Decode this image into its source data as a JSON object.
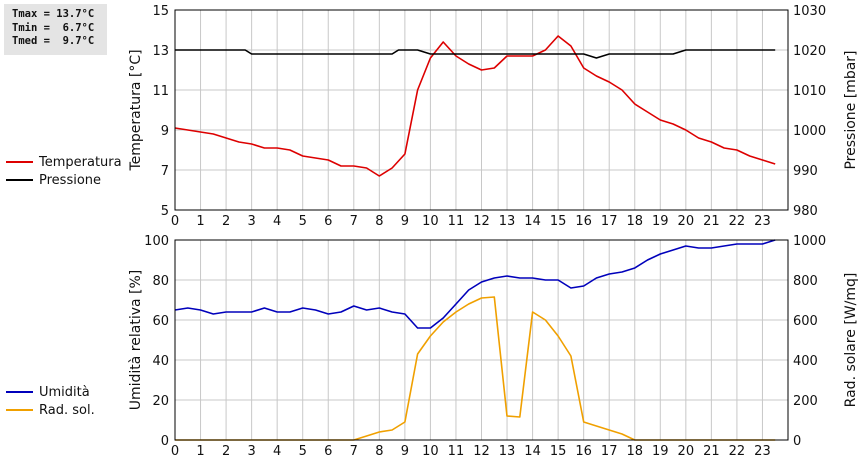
{
  "stats": {
    "tmax": "Tmax = 13.7°C",
    "tmin": "Tmin =  6.7°C",
    "tmed": "Tmed =  9.7°C"
  },
  "colors": {
    "temperature": "#dd0000",
    "pressure": "#000000",
    "humidity": "#0000bb",
    "radiation": "#f0a000",
    "grid": "#c8c8c8"
  },
  "chart_data": [
    {
      "type": "line",
      "x_ticks": [
        "0",
        "1",
        "2",
        "3",
        "4",
        "5",
        "6",
        "7",
        "8",
        "9",
        "10",
        "11",
        "12",
        "13",
        "14",
        "15",
        "16",
        "17",
        "18",
        "19",
        "20",
        "21",
        "22",
        "23"
      ],
      "xlim": [
        0,
        24
      ],
      "ylabel": "Temperatura [°C]",
      "ylim": [
        5,
        15
      ],
      "y_ticks": [
        "5",
        "7",
        "9",
        "11",
        "13",
        "15"
      ],
      "ylabel_right": "Pressione [mbar]",
      "ylim_right": [
        980,
        1030
      ],
      "y_ticks_right": [
        "980",
        "990",
        "1000",
        "1010",
        "1020",
        "1030"
      ],
      "grid": true,
      "legend": "left",
      "series": [
        {
          "name": "Temperatura",
          "axis": "left",
          "x": [
            0,
            0.5,
            1,
            1.5,
            2,
            2.5,
            3,
            3.5,
            4,
            4.5,
            5,
            5.5,
            6,
            6.5,
            7,
            7.5,
            7.75,
            8,
            8.5,
            9,
            9.5,
            10,
            10.5,
            11,
            11.5,
            12,
            12.5,
            13,
            13.5,
            14,
            14.5,
            15,
            15.5,
            16,
            16.5,
            17,
            17.5,
            18,
            18.5,
            19,
            19.5,
            20,
            20.5,
            21,
            21.5,
            22,
            22.5,
            23,
            23.5
          ],
          "y": [
            9.1,
            9.0,
            8.9,
            8.8,
            8.6,
            8.4,
            8.3,
            8.1,
            8.1,
            8.0,
            7.7,
            7.6,
            7.5,
            7.2,
            7.2,
            7.1,
            6.9,
            6.7,
            7.1,
            7.8,
            11.0,
            12.6,
            13.4,
            12.7,
            12.3,
            12.0,
            12.1,
            12.7,
            12.7,
            12.7,
            13.0,
            13.7,
            13.2,
            12.1,
            11.7,
            11.4,
            11.0,
            10.3,
            9.9,
            9.5,
            9.3,
            9.0,
            8.6,
            8.4,
            8.1,
            8.0,
            7.7,
            7.5,
            7.3
          ]
        },
        {
          "name": "Pressione",
          "axis": "right",
          "x": [
            0,
            0.5,
            1,
            1.5,
            2,
            2.5,
            2.75,
            3,
            3.5,
            4,
            4.5,
            5,
            5.5,
            6,
            6.5,
            7,
            7.5,
            8,
            8.5,
            8.75,
            9,
            9.5,
            10,
            10.5,
            11,
            11.5,
            12,
            12.5,
            13,
            13.5,
            14,
            14.5,
            15,
            15.5,
            16,
            16.5,
            17,
            17.5,
            18,
            18.5,
            19,
            19.5,
            20,
            20.5,
            21,
            21.5,
            22,
            22.5,
            23,
            23.5
          ],
          "y": [
            1020,
            1020,
            1020,
            1020,
            1020,
            1020,
            1020,
            1019,
            1019,
            1019,
            1019,
            1019,
            1019,
            1019,
            1019,
            1019,
            1019,
            1019,
            1019,
            1020,
            1020,
            1020,
            1019,
            1019,
            1019,
            1019,
            1019,
            1019,
            1019,
            1019,
            1019,
            1019,
            1019,
            1019,
            1019,
            1018,
            1019,
            1019,
            1019,
            1019,
            1019,
            1019,
            1020,
            1020,
            1020,
            1020,
            1020,
            1020,
            1020,
            1020
          ]
        }
      ]
    },
    {
      "type": "line",
      "x_ticks": [
        "0",
        "1",
        "2",
        "3",
        "4",
        "5",
        "6",
        "7",
        "8",
        "9",
        "10",
        "11",
        "12",
        "13",
        "14",
        "15",
        "16",
        "17",
        "18",
        "19",
        "20",
        "21",
        "22",
        "23"
      ],
      "xlim": [
        0,
        24
      ],
      "ylabel": "Umidità relativa [%]",
      "ylim": [
        0,
        100
      ],
      "y_ticks": [
        "0",
        "20",
        "40",
        "60",
        "80",
        "100"
      ],
      "ylabel_right": "Rad. solare [W/mq]",
      "ylim_right": [
        0,
        1000
      ],
      "y_ticks_right": [
        "0",
        "200",
        "400",
        "600",
        "800",
        "1000"
      ],
      "grid": true,
      "legend": "left",
      "series": [
        {
          "name": "Umidità",
          "axis": "left",
          "x": [
            0,
            0.5,
            1,
            1.5,
            2,
            2.5,
            3,
            3.5,
            4,
            4.5,
            5,
            5.5,
            6,
            6.5,
            7,
            7.5,
            8,
            8.5,
            9,
            9.5,
            10,
            10.5,
            11,
            11.5,
            12,
            12.5,
            13,
            13.5,
            14,
            14.5,
            15,
            15.5,
            16,
            16.5,
            17,
            17.5,
            18,
            18.5,
            19,
            19.5,
            20,
            20.5,
            21,
            21.5,
            22,
            22.5,
            23,
            23.5
          ],
          "y": [
            65,
            66,
            65,
            63,
            64,
            64,
            64,
            66,
            64,
            64,
            66,
            65,
            63,
            64,
            67,
            65,
            66,
            64,
            63,
            56,
            56,
            61,
            68,
            75,
            79,
            81,
            82,
            81,
            81,
            80,
            80,
            76,
            77,
            81,
            83,
            84,
            86,
            90,
            93,
            95,
            97,
            96,
            96,
            97,
            98,
            98,
            98,
            100
          ]
        },
        {
          "name": "Rad. sol.",
          "axis": "right",
          "x": [
            0,
            0.5,
            1,
            1.5,
            2,
            2.5,
            3,
            3.5,
            4,
            4.5,
            5,
            5.5,
            6,
            6.5,
            7,
            7.5,
            8,
            8.5,
            9,
            9.5,
            10,
            10.5,
            11,
            11.5,
            12,
            12.5,
            13,
            13.5,
            14,
            14.5,
            15,
            15.5,
            16,
            16.5,
            17,
            17.5,
            18,
            18.5,
            19,
            19.5,
            20,
            20.5,
            21,
            21.5,
            22,
            22.5,
            23,
            23.5
          ],
          "y": [
            0,
            0,
            0,
            0,
            0,
            0,
            0,
            0,
            0,
            0,
            0,
            0,
            0,
            0,
            0,
            20,
            40,
            50,
            90,
            430,
            520,
            590,
            640,
            680,
            710,
            715,
            120,
            115,
            640,
            600,
            520,
            420,
            90,
            70,
            50,
            30,
            0,
            0,
            0,
            0,
            0,
            0,
            0,
            0,
            0,
            0,
            0,
            0
          ]
        }
      ]
    }
  ]
}
